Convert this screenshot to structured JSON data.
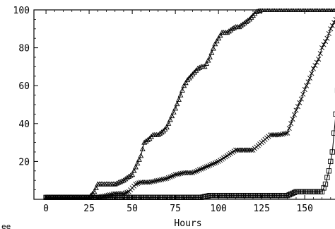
{
  "chart_data": {
    "type": "line",
    "title": "",
    "xlabel": "Hours",
    "ylabel": "",
    "partial_ylabel": "ee",
    "xlim": [
      -7,
      170
    ],
    "ylim": [
      0,
      100
    ],
    "xticks": [
      "0",
      "25",
      "50",
      "75",
      "100",
      "125",
      "150"
    ],
    "yticks": [
      "20",
      "40",
      "60",
      "80",
      "100"
    ],
    "grid": false,
    "legend": "none",
    "series": [
      {
        "marker": "triangle",
        "x": [
          0,
          10,
          20,
          25,
          28,
          30,
          35,
          40,
          45,
          48,
          50,
          52,
          55,
          57,
          60,
          62,
          65,
          68,
          70,
          72,
          75,
          78,
          80,
          82,
          85,
          88,
          90,
          92,
          95,
          98,
          100,
          102,
          105,
          108,
          110,
          112,
          115,
          118,
          120,
          122,
          125,
          128,
          130,
          135,
          140,
          145,
          150,
          155,
          160,
          165,
          168
        ],
        "y": [
          1,
          1,
          1,
          1,
          4,
          8,
          8,
          8,
          10,
          12,
          13,
          17,
          23,
          30,
          32,
          34,
          34,
          36,
          38,
          42,
          48,
          55,
          60,
          63,
          66,
          69,
          70,
          70,
          75,
          82,
          85,
          88,
          88,
          90,
          91,
          91,
          93,
          95,
          97,
          99,
          100,
          100,
          100,
          100,
          100,
          100,
          100,
          100,
          100,
          100,
          100
        ]
      },
      {
        "marker": "cross",
        "x": [
          0,
          10,
          20,
          30,
          35,
          40,
          45,
          48,
          50,
          52,
          55,
          60,
          65,
          70,
          75,
          80,
          85,
          90,
          95,
          100,
          105,
          110,
          115,
          120,
          125,
          130,
          135,
          140,
          142,
          145,
          148,
          150,
          153,
          155,
          158,
          160,
          163,
          165,
          168
        ],
        "y": [
          1,
          1,
          1,
          1,
          2,
          3,
          3,
          4,
          6,
          8,
          9,
          9,
          10,
          11,
          13,
          14,
          14,
          16,
          18,
          20,
          23,
          26,
          26,
          26,
          30,
          34,
          34,
          35,
          40,
          47,
          53,
          58,
          64,
          69,
          74,
          80,
          85,
          90,
          95
        ]
      },
      {
        "marker": "square",
        "x": [
          0,
          10,
          20,
          30,
          40,
          50,
          60,
          70,
          80,
          90,
          95,
          100,
          110,
          120,
          130,
          140,
          145,
          150,
          155,
          158,
          160,
          162,
          164,
          166,
          168,
          170
        ],
        "y": [
          1,
          1,
          1,
          1,
          1,
          1,
          1,
          1,
          1,
          1,
          2,
          2,
          2,
          2,
          2,
          2,
          4,
          4,
          4,
          4,
          4,
          8,
          15,
          25,
          45,
          70
        ]
      }
    ]
  }
}
